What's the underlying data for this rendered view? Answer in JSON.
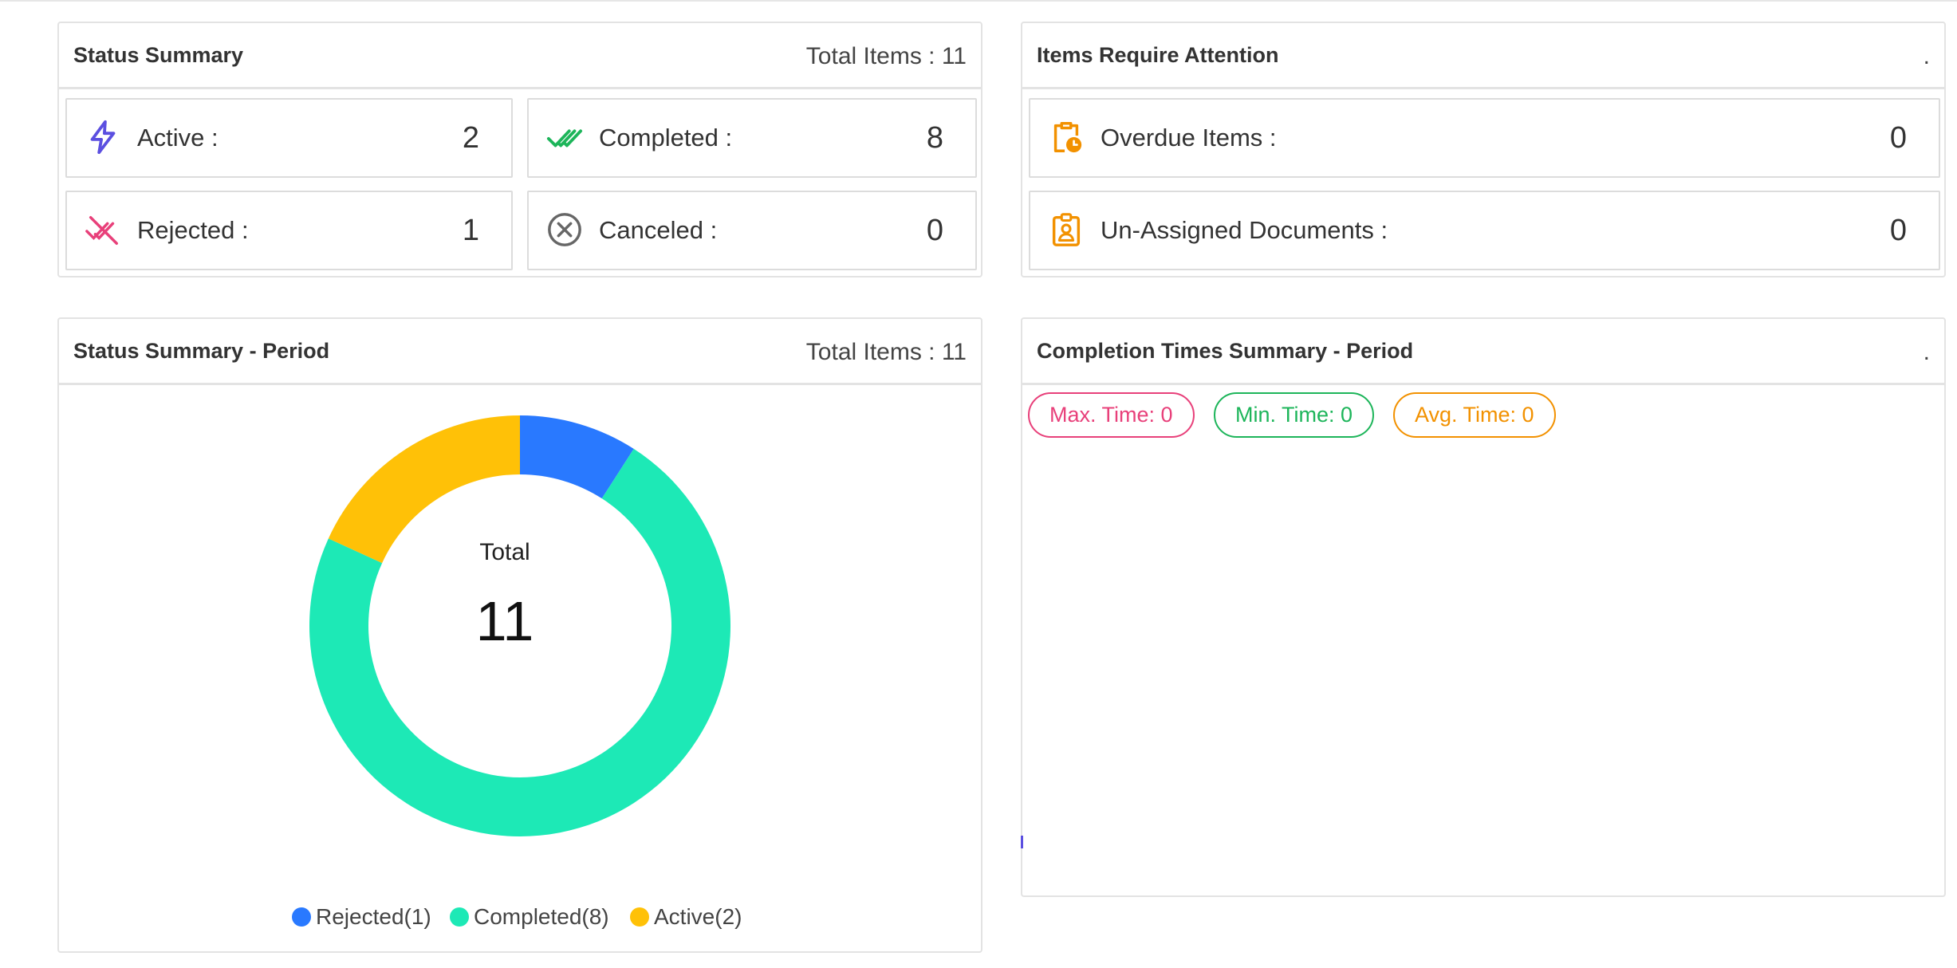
{
  "status_summary": {
    "title": "Status Summary",
    "total": "Total Items : 11",
    "cards": {
      "active": {
        "label": "Active :",
        "value": "2",
        "icon": "bolt-icon",
        "color": "#5b4fe0"
      },
      "completed": {
        "label": "Completed :",
        "value": "8",
        "icon": "double-check-icon",
        "color": "#1db55a"
      },
      "rejected": {
        "label": "Rejected :",
        "value": "1",
        "icon": "rejected-icon",
        "color": "#e8407a"
      },
      "canceled": {
        "label": "Canceled :",
        "value": "0",
        "icon": "cancel-circle-icon",
        "color": "#666666"
      }
    }
  },
  "attention": {
    "title": "Items Require Attention",
    "dot": ".",
    "cards": {
      "overdue": {
        "label": "Overdue Items :",
        "value": "0",
        "icon": "clipboard-clock-icon",
        "color": "#f29100"
      },
      "unassigned": {
        "label": "Un-Assigned Documents :",
        "value": "0",
        "icon": "badge-person-icon",
        "color": "#f29100"
      }
    }
  },
  "status_period": {
    "title": "Status Summary - Period",
    "total": "Total Items : 11",
    "center_label": "Total",
    "center_value": "11"
  },
  "completion": {
    "title": "Completion Times Summary - Period",
    "dot": ".",
    "chips": {
      "max": {
        "label": "Max. Time: 0",
        "color": "#e8407a"
      },
      "min": {
        "label": "Min. Time: 0",
        "color": "#1db55a"
      },
      "avg": {
        "label": "Avg. Time: 0",
        "color": "#f29100"
      }
    }
  },
  "chart_data": {
    "type": "pie",
    "title": "",
    "total": 11,
    "series": [
      {
        "name": "Rejected(1)",
        "label": "Rejected",
        "value": 1,
        "color": "#2979ff"
      },
      {
        "name": "Completed(8)",
        "label": "Completed",
        "value": 8,
        "color": "#1de9b6"
      },
      {
        "name": "Active(2)",
        "label": "Active",
        "value": 2,
        "color": "#ffc107"
      }
    ],
    "legend_position": "bottom"
  }
}
